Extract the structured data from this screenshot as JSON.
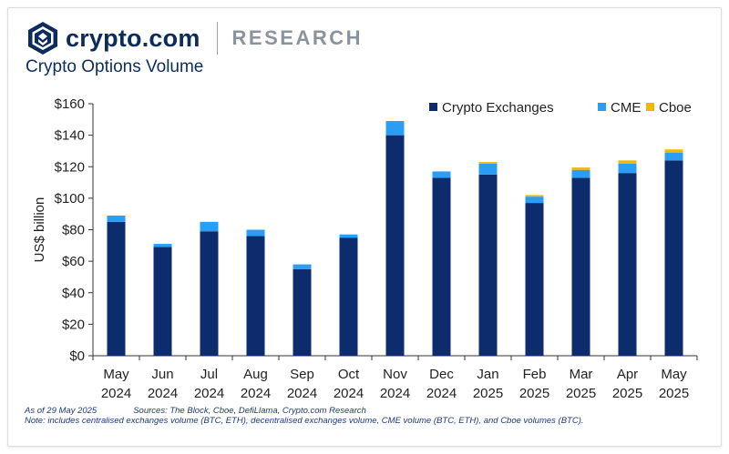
{
  "brand": {
    "name": "crypto.com",
    "section": "RESEARCH"
  },
  "title": "Crypto Options Volume",
  "notes": {
    "as_of": "As of 29 May 2025",
    "sources": "Sources: The Block, Cboe, DefiLlama, Crypto.com Research",
    "note": "Note: includes centralised exchanges volume (BTC, ETH), decentralised exchanges volume, CME volume (BTC, ETH), and Cboe volumes (BTC)."
  },
  "colors": {
    "crypto_exchanges": "#0d2c6e",
    "cme": "#2a9df4",
    "cboe": "#f2b705",
    "text": "#0d2c5e"
  },
  "chart_data": {
    "type": "bar",
    "stacked": true,
    "categories": [
      "May 2024",
      "Jun 2024",
      "Jul 2024",
      "Aug 2024",
      "Sep 2024",
      "Oct 2024",
      "Nov 2024",
      "Dec 2024",
      "Jan 2025",
      "Feb 2025",
      "Mar 2025",
      "Apr 2025",
      "May 2025"
    ],
    "category_labels": [
      [
        "May",
        "2024"
      ],
      [
        "Jun",
        "2024"
      ],
      [
        "Jul",
        "2024"
      ],
      [
        "Aug",
        "2024"
      ],
      [
        "Sep",
        "2024"
      ],
      [
        "Oct",
        "2024"
      ],
      [
        "Nov",
        "2024"
      ],
      [
        "Dec",
        "2024"
      ],
      [
        "Jan",
        "2025"
      ],
      [
        "Feb",
        "2025"
      ],
      [
        "Mar",
        "2025"
      ],
      [
        "Apr",
        "2025"
      ],
      [
        "May",
        "2025"
      ]
    ],
    "series": [
      {
        "name": "Crypto Exchanges",
        "values": [
          85,
          69,
          79,
          76,
          55,
          75,
          140,
          113,
          115,
          97,
          113,
          116,
          124
        ]
      },
      {
        "name": "CME",
        "values": [
          4,
          2,
          6,
          4,
          3,
          2,
          9,
          4,
          7,
          4,
          5,
          6,
          5
        ]
      },
      {
        "name": "Cboe",
        "values": [
          0,
          0,
          0,
          0,
          0,
          0,
          0,
          0,
          1,
          1,
          1.5,
          2,
          2
        ]
      }
    ],
    "ylabel": "US$ billion",
    "ylim": [
      0,
      160
    ],
    "yticks": [
      "$0",
      "$20",
      "$40",
      "$60",
      "$80",
      "$100",
      "$120",
      "$140",
      "$160"
    ],
    "legend_position": "top-right",
    "grid": false
  }
}
